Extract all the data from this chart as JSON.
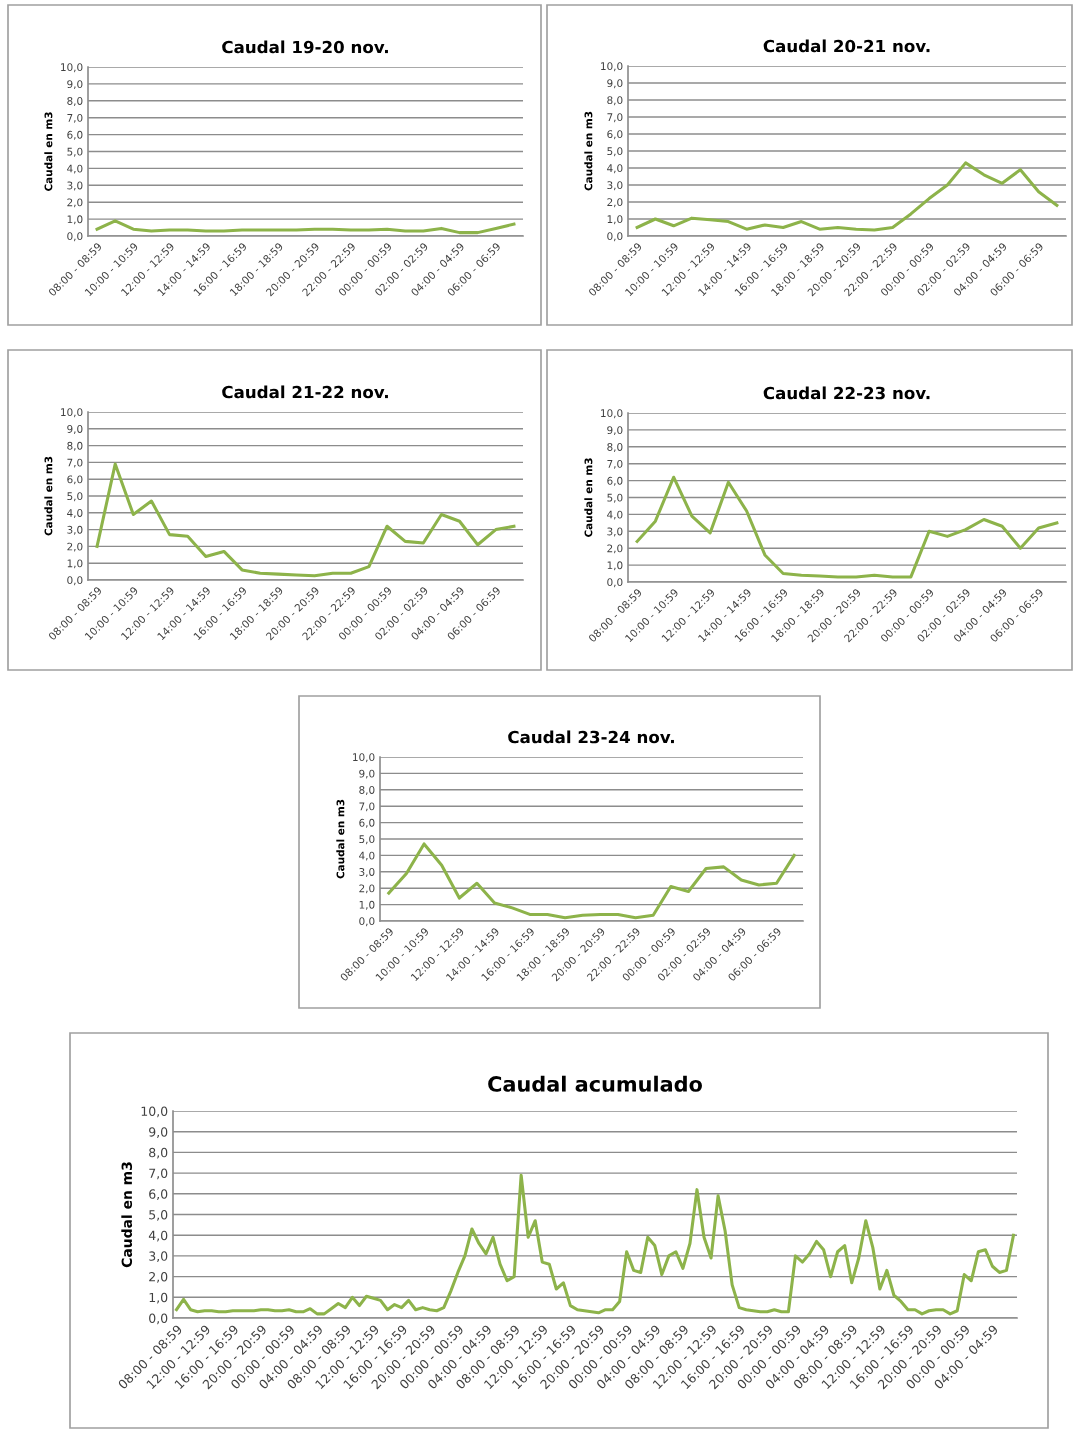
{
  "chart_data": [
    {
      "type": "line",
      "title": "Caudal 19-20 nov.",
      "ylabel": "Caudal en m3",
      "color": "#8db34a",
      "grid": "y",
      "ylim": [
        0,
        10
      ],
      "yticks": [
        {
          "value": 0,
          "label": "0,0"
        },
        {
          "value": 1,
          "label": "1,0"
        },
        {
          "value": 2,
          "label": "2,0"
        },
        {
          "value": 3,
          "label": "3,0"
        },
        {
          "value": 4,
          "label": "4,0"
        },
        {
          "value": 5,
          "label": "5,0"
        },
        {
          "value": 6,
          "label": "6,0"
        },
        {
          "value": 7,
          "label": "7,0"
        },
        {
          "value": 8,
          "label": "8,0"
        },
        {
          "value": 9,
          "label": "9,0"
        },
        {
          "value": 10,
          "label": "10,0"
        }
      ],
      "categories": [
        "08:00 - 08:59",
        null,
        "10:00 - 10:59",
        null,
        "12:00 - 12:59",
        null,
        "14:00 - 14:59",
        null,
        "16:00 - 16:59",
        null,
        "18:00 - 18:59",
        null,
        "20:00 - 20:59",
        null,
        "22:00 - 22:59",
        null,
        "00:00 - 00:59",
        null,
        "02:00 - 02:59",
        null,
        "04:00 - 04:59",
        null,
        "06:00 - 06:59",
        null
      ],
      "values": [
        0.4,
        0.9,
        0.4,
        0.3,
        0.35,
        0.35,
        0.3,
        0.3,
        0.35,
        0.35,
        0.35,
        0.35,
        0.4,
        0.4,
        0.35,
        0.35,
        0.4,
        0.3,
        0.3,
        0.45,
        0.2,
        0.2,
        0.45,
        0.7
      ]
    },
    {
      "type": "line",
      "title": "Caudal 20-21 nov.",
      "ylabel": "Caudal en m3",
      "color": "#8db34a",
      "grid": "y",
      "ylim": [
        0,
        10
      ],
      "yticks": [
        {
          "value": 0,
          "label": "0,0"
        },
        {
          "value": 1,
          "label": "1,0"
        },
        {
          "value": 2,
          "label": "2,0"
        },
        {
          "value": 3,
          "label": "3,0"
        },
        {
          "value": 4,
          "label": "4,0"
        },
        {
          "value": 5,
          "label": "5,0"
        },
        {
          "value": 6,
          "label": "6,0"
        },
        {
          "value": 7,
          "label": "7,0"
        },
        {
          "value": 8,
          "label": "8,0"
        },
        {
          "value": 9,
          "label": "9,0"
        },
        {
          "value": 10,
          "label": "10,0"
        }
      ],
      "categories": [
        "08:00 - 08:59",
        null,
        "10:00 - 10:59",
        null,
        "12:00 - 12:59",
        null,
        "14:00 - 14:59",
        null,
        "16:00 - 16:59",
        null,
        "18:00 - 18:59",
        null,
        "20:00 - 20:59",
        null,
        "22:00 - 22:59",
        null,
        "00:00 - 00:59",
        null,
        "02:00 - 02:59",
        null,
        "04:00 - 04:59",
        null,
        "06:00 - 06:59",
        null
      ],
      "values": [
        0.5,
        1.0,
        0.6,
        1.05,
        0.95,
        0.85,
        0.4,
        0.65,
        0.5,
        0.85,
        0.4,
        0.5,
        0.4,
        0.35,
        0.5,
        1.3,
        2.2,
        3.0,
        4.3,
        3.6,
        3.1,
        3.9,
        2.6,
        1.8
      ]
    },
    {
      "type": "line",
      "title": "Caudal 21-22 nov.",
      "ylabel": "Caudal en m3",
      "color": "#8db34a",
      "grid": "y",
      "ylim": [
        0,
        10
      ],
      "yticks": [
        {
          "value": 0,
          "label": "0,0"
        },
        {
          "value": 1,
          "label": "1,0"
        },
        {
          "value": 2,
          "label": "2,0"
        },
        {
          "value": 3,
          "label": "3,0"
        },
        {
          "value": 4,
          "label": "4,0"
        },
        {
          "value": 5,
          "label": "5,0"
        },
        {
          "value": 6,
          "label": "6,0"
        },
        {
          "value": 7,
          "label": "7,0"
        },
        {
          "value": 8,
          "label": "8,0"
        },
        {
          "value": 9,
          "label": "9,0"
        },
        {
          "value": 10,
          "label": "10,0"
        }
      ],
      "categories": [
        "08:00 - 08:59",
        null,
        "10:00 - 10:59",
        null,
        "12:00 - 12:59",
        null,
        "14:00 - 14:59",
        null,
        "16:00 - 16:59",
        null,
        "18:00 - 18:59",
        null,
        "20:00 - 20:59",
        null,
        "22:00 - 22:59",
        null,
        "00:00 - 00:59",
        null,
        "02:00 - 02:59",
        null,
        "04:00 - 04:59",
        null,
        "06:00 - 06:59",
        null
      ],
      "values": [
        2.0,
        6.9,
        3.9,
        4.7,
        2.7,
        2.6,
        1.4,
        1.7,
        0.6,
        0.4,
        0.35,
        0.3,
        0.25,
        0.4,
        0.4,
        0.8,
        3.2,
        2.3,
        2.2,
        3.9,
        3.5,
        2.1,
        3.0,
        3.2
      ]
    },
    {
      "type": "line",
      "title": "Caudal 22-23 nov.",
      "ylabel": "Caudal en m3",
      "color": "#8db34a",
      "grid": "y",
      "ylim": [
        0,
        10
      ],
      "yticks": [
        {
          "value": 0,
          "label": "0,0"
        },
        {
          "value": 1,
          "label": "1,0"
        },
        {
          "value": 2,
          "label": "2,0"
        },
        {
          "value": 3,
          "label": "3,0"
        },
        {
          "value": 4,
          "label": "4,0"
        },
        {
          "value": 5,
          "label": "5,0"
        },
        {
          "value": 6,
          "label": "6,0"
        },
        {
          "value": 7,
          "label": "7,0"
        },
        {
          "value": 8,
          "label": "8,0"
        },
        {
          "value": 9,
          "label": "9,0"
        },
        {
          "value": 10,
          "label": "10,0"
        }
      ],
      "categories": [
        "08:00 - 08:59",
        null,
        "10:00 - 10:59",
        null,
        "12:00 - 12:59",
        null,
        "14:00 - 14:59",
        null,
        "16:00 - 16:59",
        null,
        "18:00 - 18:59",
        null,
        "20:00 - 20:59",
        null,
        "22:00 - 22:59",
        null,
        "00:00 - 00:59",
        null,
        "02:00 - 02:59",
        null,
        "04:00 - 04:59",
        null,
        "06:00 - 06:59",
        null
      ],
      "values": [
        2.4,
        3.6,
        6.2,
        3.9,
        2.9,
        5.9,
        4.2,
        1.6,
        0.5,
        0.4,
        0.35,
        0.3,
        0.3,
        0.4,
        0.3,
        0.3,
        3.0,
        2.7,
        3.1,
        3.7,
        3.3,
        2.0,
        3.2,
        3.5
      ]
    },
    {
      "type": "line",
      "title": "Caudal 23-24 nov.",
      "ylabel": "Caudal en m3",
      "color": "#8db34a",
      "grid": "y",
      "ylim": [
        0,
        10
      ],
      "yticks": [
        {
          "value": 0,
          "label": "0,0"
        },
        {
          "value": 1,
          "label": "1,0"
        },
        {
          "value": 2,
          "label": "2,0"
        },
        {
          "value": 3,
          "label": "3,0"
        },
        {
          "value": 4,
          "label": "4,0"
        },
        {
          "value": 5,
          "label": "5,0"
        },
        {
          "value": 6,
          "label": "6,0"
        },
        {
          "value": 7,
          "label": "7,0"
        },
        {
          "value": 8,
          "label": "8,0"
        },
        {
          "value": 9,
          "label": "9,0"
        },
        {
          "value": 10,
          "label": "10,0"
        }
      ],
      "categories": [
        "08:00 - 08:59",
        null,
        "10:00 - 10:59",
        null,
        "12:00 - 12:59",
        null,
        "14:00 - 14:59",
        null,
        "16:00 - 16:59",
        null,
        "18:00 - 18:59",
        null,
        "20:00 - 20:59",
        null,
        "22:00 - 22:59",
        null,
        "00:00 - 00:59",
        null,
        "02:00 - 02:59",
        null,
        "04:00 - 04:59",
        null,
        "06:00 - 06:59",
        null
      ],
      "values": [
        1.7,
        2.9,
        4.7,
        3.4,
        1.4,
        2.3,
        1.1,
        0.8,
        0.4,
        0.4,
        0.2,
        0.35,
        0.4,
        0.4,
        0.2,
        0.35,
        2.1,
        1.8,
        3.2,
        3.3,
        2.5,
        2.2,
        2.3,
        4.0
      ]
    },
    {
      "type": "line",
      "title": "Caudal acumulado",
      "ylabel": "Caudal en m3",
      "color": "#8db34a",
      "grid": "y",
      "ylim": [
        0,
        10
      ],
      "yticks": [
        {
          "value": 0,
          "label": "0,0"
        },
        {
          "value": 1,
          "label": "1,0"
        },
        {
          "value": 2,
          "label": "2,0"
        },
        {
          "value": 3,
          "label": "3,0"
        },
        {
          "value": 4,
          "label": "4,0"
        },
        {
          "value": 5,
          "label": "5,0"
        },
        {
          "value": 6,
          "label": "6,0"
        },
        {
          "value": 7,
          "label": "7,0"
        },
        {
          "value": 8,
          "label": "8,0"
        },
        {
          "value": 9,
          "label": "9,0"
        },
        {
          "value": 10,
          "label": "10,0"
        }
      ],
      "categories": [
        "08:00 - 08:59",
        null,
        null,
        null,
        "12:00 - 12:59",
        null,
        null,
        null,
        "16:00 - 16:59",
        null,
        null,
        null,
        "20:00 - 20:59",
        null,
        null,
        null,
        "00:00 - 00:59",
        null,
        null,
        null,
        "04:00 - 04:59",
        null,
        null,
        null,
        "08:00 - 08:59",
        null,
        null,
        null,
        "12:00 - 12:59",
        null,
        null,
        null,
        "16:00 - 16:59",
        null,
        null,
        null,
        "20:00 - 20:59",
        null,
        null,
        null,
        "00:00 - 00:59",
        null,
        null,
        null,
        "04:00 - 04:59",
        null,
        null,
        null,
        "08:00 - 08:59",
        null,
        null,
        null,
        "12:00 - 12:59",
        null,
        null,
        null,
        "16:00 - 16:59",
        null,
        null,
        null,
        "20:00 - 20:59",
        null,
        null,
        null,
        "00:00 - 00:59",
        null,
        null,
        null,
        "04:00 - 04:59",
        null,
        null,
        null,
        "08:00 - 08:59",
        null,
        null,
        null,
        "12:00 - 12:59",
        null,
        null,
        null,
        "16:00 - 16:59",
        null,
        null,
        null,
        "20:00 - 20:59",
        null,
        null,
        null,
        "00:00 - 00:59",
        null,
        null,
        null,
        "04:00 - 04:59",
        null,
        null,
        null,
        "08:00 - 08:59",
        null,
        null,
        null,
        "12:00 - 12:59",
        null,
        null,
        null,
        "16:00 - 16:59",
        null,
        null,
        null,
        "20:00 - 20:59",
        null,
        null,
        null,
        "00:00 - 00:59",
        null,
        null,
        null,
        "04:00 - 04:59",
        null,
        null,
        null
      ],
      "values": [
        0.4,
        0.9,
        0.4,
        0.3,
        0.35,
        0.35,
        0.3,
        0.3,
        0.35,
        0.35,
        0.35,
        0.35,
        0.4,
        0.4,
        0.35,
        0.35,
        0.4,
        0.3,
        0.3,
        0.45,
        0.2,
        0.2,
        0.45,
        0.7,
        0.5,
        1.0,
        0.6,
        1.05,
        0.95,
        0.85,
        0.4,
        0.65,
        0.5,
        0.85,
        0.4,
        0.5,
        0.4,
        0.35,
        0.5,
        1.3,
        2.2,
        3.0,
        4.3,
        3.6,
        3.1,
        3.9,
        2.6,
        1.8,
        2.0,
        6.9,
        3.9,
        4.7,
        2.7,
        2.6,
        1.4,
        1.7,
        0.6,
        0.4,
        0.35,
        0.3,
        0.25,
        0.4,
        0.4,
        0.8,
        3.2,
        2.3,
        2.2,
        3.9,
        3.5,
        2.1,
        3.0,
        3.2,
        2.4,
        3.6,
        6.2,
        3.9,
        2.9,
        5.9,
        4.2,
        1.6,
        0.5,
        0.4,
        0.35,
        0.3,
        0.3,
        0.4,
        0.3,
        0.3,
        3.0,
        2.7,
        3.1,
        3.7,
        3.3,
        2.0,
        3.2,
        3.5,
        1.7,
        2.9,
        4.7,
        3.4,
        1.4,
        2.3,
        1.1,
        0.8,
        0.4,
        0.4,
        0.2,
        0.35,
        0.4,
        0.4,
        0.2,
        0.35,
        2.1,
        1.8,
        3.2,
        3.3,
        2.5,
        2.2,
        2.3,
        4.0
      ]
    }
  ]
}
